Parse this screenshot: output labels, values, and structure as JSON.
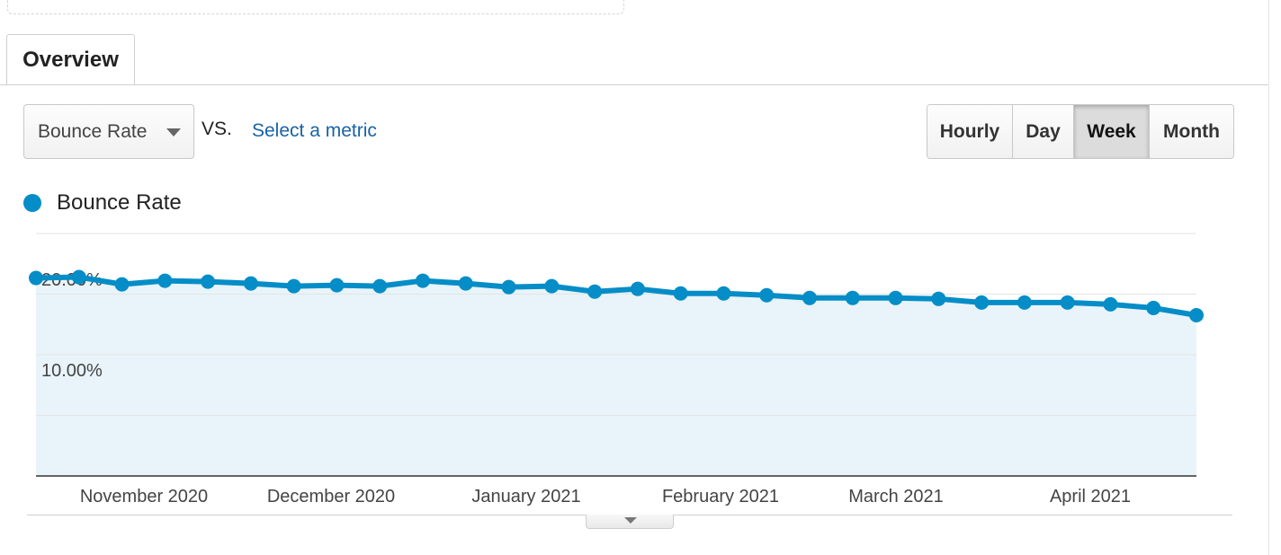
{
  "tab": {
    "label": "Overview"
  },
  "controls": {
    "metric_selected": "Bounce Rate",
    "vs_label": "VS.",
    "compare_link": "Select a metric",
    "ranges": [
      "Hourly",
      "Day",
      "Week",
      "Month"
    ],
    "active_range": "Week"
  },
  "legend": {
    "label": "Bounce Rate",
    "color": "#058dc7"
  },
  "colors": {
    "line": "#058dc7",
    "area": "#e8f4fa",
    "link": "#1a62a6"
  },
  "chart_data": {
    "type": "area",
    "series": [
      {
        "name": "Bounce Rate",
        "values": [
          21.8,
          21.9,
          21.1,
          21.5,
          21.4,
          21.2,
          20.9,
          21.0,
          20.9,
          21.5,
          21.2,
          20.8,
          20.9,
          20.3,
          20.6,
          20.1,
          20.1,
          19.9,
          19.6,
          19.6,
          19.6,
          19.5,
          19.1,
          19.1,
          19.1,
          18.9,
          18.5,
          17.7
        ]
      }
    ],
    "x_ticks": [
      "November 2020",
      "December 2020",
      "January 2021",
      "February 2021",
      "March 2021",
      "April 2021"
    ],
    "y_ticks": [
      "20.00%",
      "10.00%"
    ],
    "y_tick_values": [
      20,
      10
    ],
    "ylim": [
      0,
      26.7
    ],
    "grid": true
  }
}
